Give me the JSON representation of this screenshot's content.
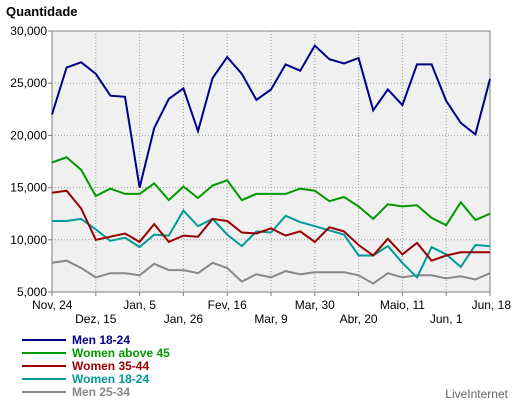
{
  "chart_data": {
    "type": "line",
    "ylabel": "Quantidade",
    "ylim": [
      5000,
      30000
    ],
    "yticks": [
      5000,
      10000,
      15000,
      20000,
      25000,
      30000
    ],
    "ytick_labels": [
      "5,000",
      "10,000",
      "15,000",
      "20,000",
      "25,000",
      "30,000"
    ],
    "xticks": [
      {
        "i": 0,
        "label": "Nov, 24",
        "row": 0
      },
      {
        "i": 3,
        "label": "Dez, 15",
        "row": 1
      },
      {
        "i": 6,
        "label": "Jan, 5",
        "row": 0
      },
      {
        "i": 9,
        "label": "Jan, 26",
        "row": 1
      },
      {
        "i": 12,
        "label": "Fev, 16",
        "row": 0
      },
      {
        "i": 15,
        "label": "Mar, 9",
        "row": 1
      },
      {
        "i": 18,
        "label": "Mar, 30",
        "row": 0
      },
      {
        "i": 21,
        "label": "Abr, 20",
        "row": 1
      },
      {
        "i": 24,
        "label": "Maio, 11",
        "row": 0
      },
      {
        "i": 27,
        "label": "Jun, 1",
        "row": 1
      },
      {
        "i": 30,
        "label": "Jun, 18",
        "row": 0
      }
    ],
    "grid": true,
    "legend_position": "bottom-left",
    "series": [
      {
        "name": "Men 18-24",
        "color": "#00008b",
        "values": [
          22000,
          26500,
          27000,
          25900,
          23800,
          23700,
          15000,
          20700,
          23500,
          24500,
          20400,
          25500,
          27500,
          25900,
          23400,
          24400,
          26800,
          26200,
          28600,
          27300,
          26900,
          27400,
          22400,
          24400,
          22900,
          26800,
          26800,
          23300,
          21200,
          20100,
          25400
        ]
      },
      {
        "name": "Women above 45",
        "color": "#009900",
        "values": [
          17400,
          17900,
          16700,
          14200,
          14900,
          14400,
          14400,
          15400,
          13800,
          15100,
          14000,
          15200,
          15700,
          13800,
          14400,
          14400,
          14400,
          14900,
          14700,
          13700,
          14100,
          13200,
          12000,
          13400,
          13200,
          13300,
          12100,
          11400,
          13600,
          11900,
          12500
        ]
      },
      {
        "name": "Women 35-44",
        "color": "#990000",
        "values": [
          14500,
          14700,
          13000,
          10000,
          10300,
          10600,
          9800,
          11500,
          9800,
          10400,
          10300,
          12000,
          11800,
          10700,
          10600,
          11100,
          10400,
          10800,
          9800,
          11200,
          10800,
          9500,
          8500,
          10100,
          8600,
          9700,
          8000,
          8500,
          8800,
          8800,
          8800
        ]
      },
      {
        "name": "Women 18-24",
        "color": "#009999",
        "values": [
          11800,
          11800,
          12000,
          11000,
          9900,
          10200,
          9300,
          10500,
          10400,
          12800,
          11300,
          12000,
          10500,
          9400,
          10800,
          10700,
          12300,
          11700,
          11300,
          10900,
          10500,
          8500,
          8500,
          9400,
          7800,
          6400,
          9300,
          8600,
          7400,
          9500,
          9400
        ]
      },
      {
        "name": "Men 25-34",
        "color": "#888888",
        "values": [
          7800,
          8000,
          7300,
          6400,
          6800,
          6800,
          6600,
          7700,
          7100,
          7100,
          6800,
          7800,
          7300,
          6000,
          6700,
          6400,
          7000,
          6700,
          6900,
          6900,
          6900,
          6600,
          5800,
          6800,
          6400,
          6600,
          6600,
          6300,
          6500,
          6200,
          6800
        ]
      }
    ]
  },
  "brand": "LiveInternet"
}
